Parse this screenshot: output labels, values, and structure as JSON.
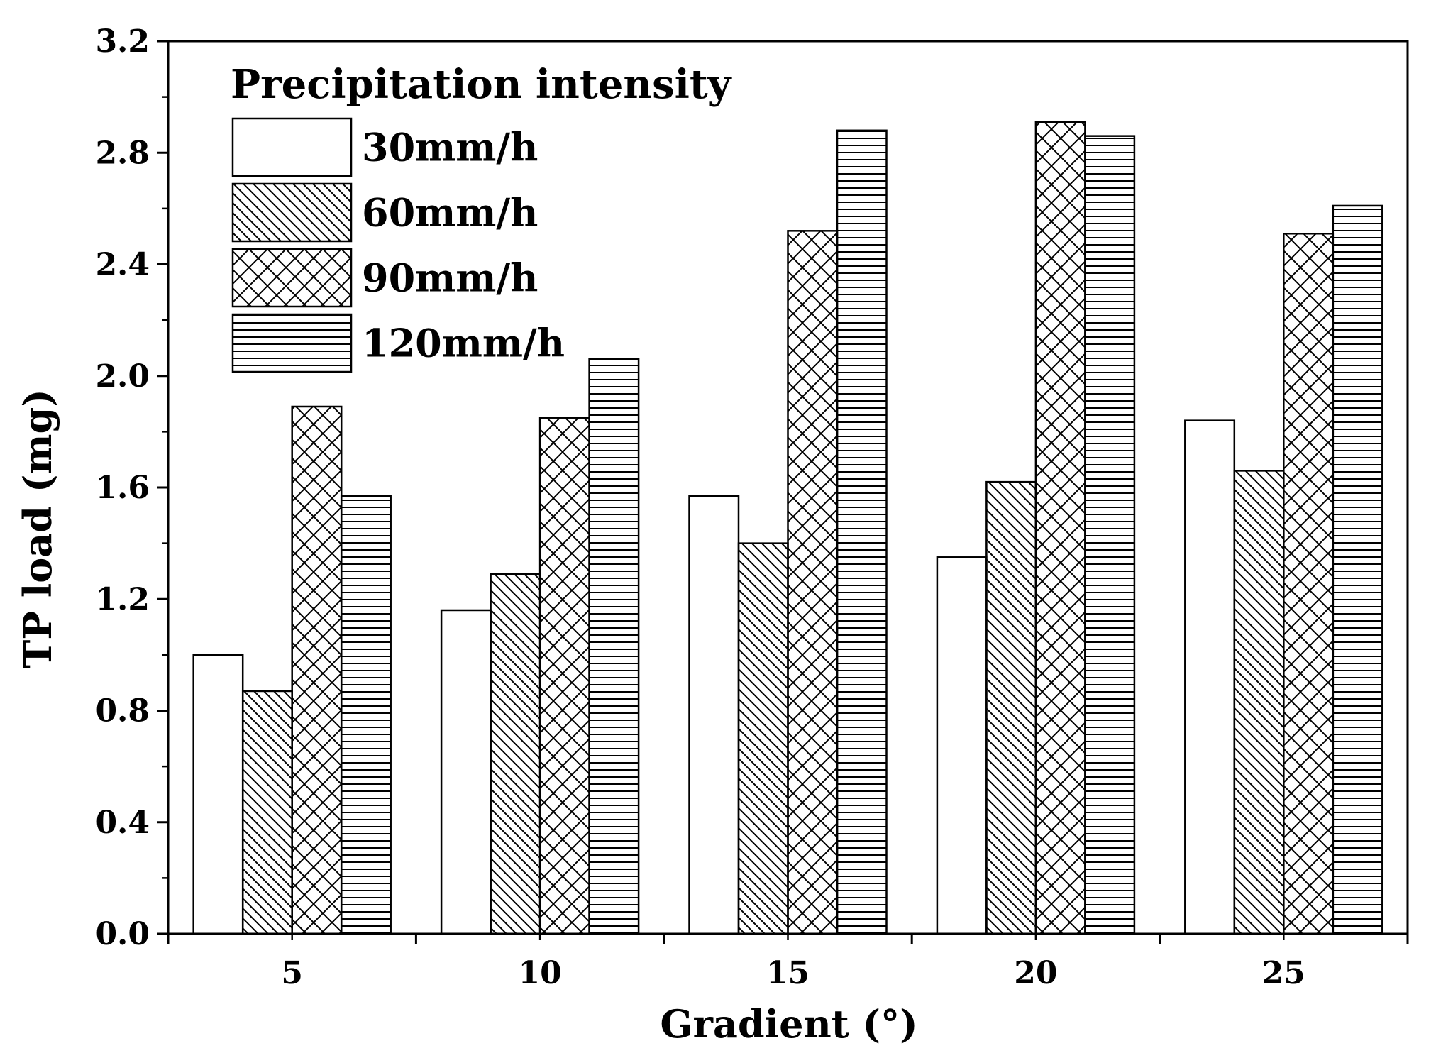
{
  "chart_data": {
    "type": "bar",
    "title": "",
    "xlabel": "Gradient (°)",
    "ylabel": "TP load (mg)",
    "ylim": [
      0,
      3.2
    ],
    "yticks": [
      "0.0",
      "0.4",
      "0.8",
      "1.2",
      "1.6",
      "2.0",
      "2.4",
      "2.8",
      "3.2"
    ],
    "categories": [
      "5",
      "10",
      "15",
      "20",
      "25"
    ],
    "legend_title": "Precipitation intensity",
    "legend_position": "top-left",
    "grid": false,
    "series": [
      {
        "name": "30mm/h",
        "pattern": "none",
        "values": [
          1.0,
          1.16,
          1.57,
          1.35,
          1.84
        ]
      },
      {
        "name": "60mm/h",
        "pattern": "diagonal",
        "values": [
          0.87,
          1.29,
          1.4,
          1.62,
          1.66
        ]
      },
      {
        "name": "90mm/h",
        "pattern": "crosshatch",
        "values": [
          1.89,
          1.85,
          2.52,
          2.91,
          2.51
        ]
      },
      {
        "name": "120mm/h",
        "pattern": "horizontal",
        "values": [
          1.57,
          2.06,
          2.88,
          2.86,
          2.61
        ]
      }
    ]
  }
}
